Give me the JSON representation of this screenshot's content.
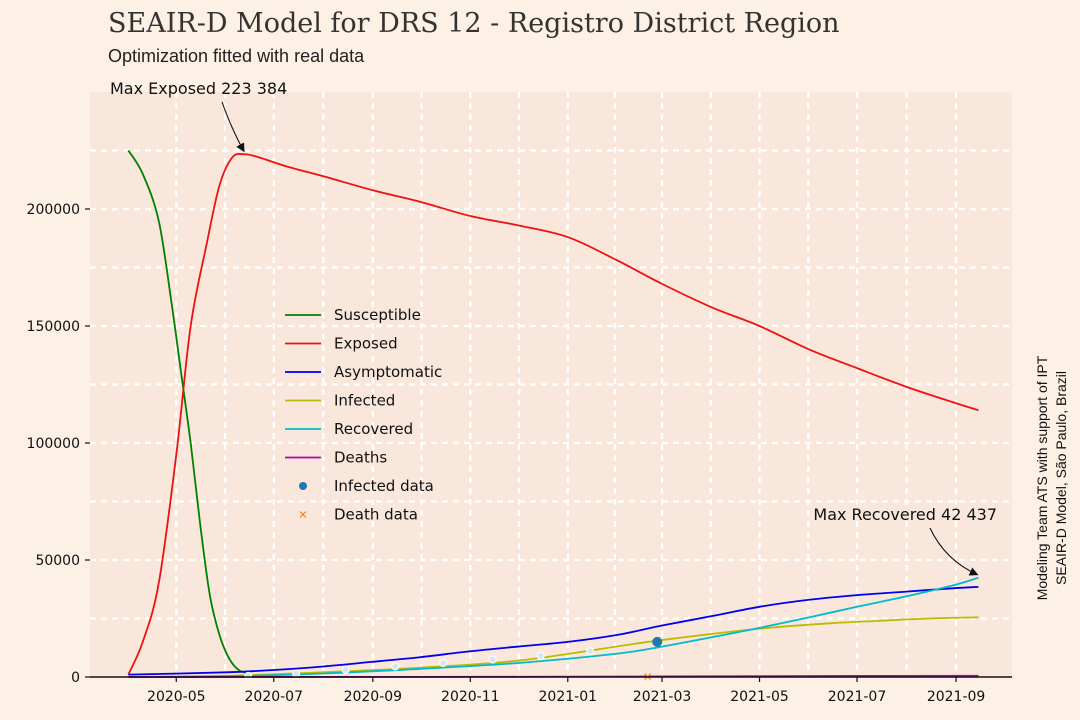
{
  "title": "SEAIR-D Model for DRS 12 - Registro District Region",
  "subtitle": "Optimization fitted with real data",
  "credits": {
    "line1": "Modeling Team ATS with support of IPT",
    "line2": "SEAIR-D Model, São Paulo, Brazil"
  },
  "annotations": {
    "max_exposed": "Max Exposed 223 384",
    "max_recovered": "Max Recovered 42 437"
  },
  "colors": {
    "background": "#fdf0e5",
    "plot_background": "#fae7dc",
    "grid": "#ffffff",
    "susceptible": "#008000",
    "exposed": "#ee1111",
    "asymptomatic": "#0000ee",
    "infected": "#bbbb00",
    "recovered": "#00bbcc",
    "deaths": "#bb00bb",
    "infected_data": "#1f77b4",
    "death_data": "#ff7f0e"
  },
  "chart_data": {
    "type": "line",
    "x_tick_labels": [
      "2020-05",
      "2020-07",
      "2020-09",
      "2020-11",
      "2021-01",
      "2021-03",
      "2021-05",
      "2021-07",
      "2021-09"
    ],
    "x_tick_dates": [
      "2020-05-01",
      "2020-07-01",
      "2020-09-01",
      "2020-11-01",
      "2021-01-01",
      "2021-03-01",
      "2021-05-01",
      "2021-07-01",
      "2021-09-01"
    ],
    "y_tick_labels": [
      "0",
      "50000",
      "100000",
      "150000",
      "200000"
    ],
    "y_tick_values": [
      0,
      50000,
      100000,
      150000,
      200000
    ],
    "xlim": [
      "2020-03-08",
      "2021-10-06"
    ],
    "ylim": [
      0,
      250000
    ],
    "grid": true,
    "legend_position": "center-left",
    "series": [
      {
        "name": "Susceptible",
        "key": "susceptible",
        "style": "line",
        "x": [
          "2020-04-01",
          "2020-04-10",
          "2020-04-20",
          "2020-04-28",
          "2020-05-04",
          "2020-05-10",
          "2020-05-16",
          "2020-05-22",
          "2020-05-28",
          "2020-06-03",
          "2020-06-09",
          "2020-06-15"
        ],
        "y": [
          225000,
          215000,
          195000,
          160000,
          130000,
          100000,
          65000,
          35000,
          18000,
          8000,
          3000,
          1500
        ]
      },
      {
        "name": "Exposed",
        "key": "exposed",
        "style": "line",
        "x": [
          "2020-04-01",
          "2020-04-10",
          "2020-04-20",
          "2020-05-01",
          "2020-05-10",
          "2020-05-20",
          "2020-05-28",
          "2020-06-05",
          "2020-06-13",
          "2020-06-22",
          "2020-07-10",
          "2020-08-01",
          "2020-09-01",
          "2020-10-01",
          "2020-11-01",
          "2020-12-01",
          "2021-01-01",
          "2021-02-01",
          "2021-03-01",
          "2021-04-01",
          "2021-05-01",
          "2021-06-01",
          "2021-07-01",
          "2021-08-01",
          "2021-09-01",
          "2021-09-15"
        ],
        "y": [
          1000,
          15000,
          40000,
          95000,
          150000,
          185000,
          210000,
          222000,
          223384,
          222000,
          218000,
          214000,
          208000,
          203000,
          197000,
          193000,
          188000,
          178000,
          168000,
          158000,
          150000,
          140000,
          132000,
          124000,
          117000,
          114000
        ]
      },
      {
        "name": "Asymptomatic",
        "key": "asymptomatic",
        "style": "line",
        "x": [
          "2020-04-01",
          "2020-06-01",
          "2020-07-01",
          "2020-08-01",
          "2020-09-01",
          "2020-10-01",
          "2020-11-01",
          "2020-12-01",
          "2021-01-01",
          "2021-02-01",
          "2021-03-01",
          "2021-04-01",
          "2021-05-01",
          "2021-06-01",
          "2021-07-01",
          "2021-08-01",
          "2021-09-01",
          "2021-09-15"
        ],
        "y": [
          1000,
          2000,
          3000,
          4500,
          6500,
          8500,
          11000,
          13000,
          15000,
          18000,
          22000,
          26000,
          30000,
          33000,
          35000,
          36500,
          38000,
          38500
        ]
      },
      {
        "name": "Infected",
        "key": "infected",
        "style": "line",
        "x": [
          "2020-04-01",
          "2020-06-01",
          "2020-08-01",
          "2020-10-01",
          "2020-12-01",
          "2021-02-15",
          "2021-03-15",
          "2021-04-15",
          "2021-05-15",
          "2021-06-15",
          "2021-07-15",
          "2021-08-15",
          "2021-09-15"
        ],
        "y": [
          0,
          500,
          2000,
          4000,
          7000,
          14500,
          17000,
          19500,
          21500,
          23000,
          24000,
          25000,
          25500
        ]
      },
      {
        "name": "Recovered",
        "key": "recovered",
        "style": "line",
        "x": [
          "2020-04-01",
          "2020-06-01",
          "2020-08-01",
          "2020-10-01",
          "2020-12-01",
          "2021-02-01",
          "2021-03-01",
          "2021-04-01",
          "2021-05-01",
          "2021-06-01",
          "2021-07-01",
          "2021-08-01",
          "2021-09-01",
          "2021-09-15"
        ],
        "y": [
          0,
          300,
          1500,
          3500,
          6000,
          10000,
          13000,
          17000,
          21000,
          25500,
          30000,
          34500,
          39500,
          42437
        ]
      },
      {
        "name": "Deaths",
        "key": "deaths",
        "style": "line",
        "x": [
          "2020-04-01",
          "2020-10-01",
          "2021-01-01",
          "2021-04-01",
          "2021-07-01",
          "2021-09-15"
        ],
        "y": [
          0,
          50,
          150,
          300,
          450,
          550
        ]
      },
      {
        "name": "Infected data",
        "key": "infected_data",
        "style": "dots",
        "x": [
          "2020-06-15",
          "2020-07-15",
          "2020-08-15",
          "2020-09-15",
          "2020-10-15",
          "2020-11-15",
          "2020-12-15",
          "2021-01-15",
          "2021-02-26"
        ],
        "y": [
          500,
          1500,
          3000,
          4500,
          6000,
          7500,
          9000,
          11000,
          15000
        ]
      },
      {
        "name": "Death data",
        "key": "death_data",
        "style": "cross",
        "x": [
          "2021-02-20"
        ],
        "y": [
          200
        ]
      }
    ],
    "annotations": [
      {
        "label_key": "max_exposed",
        "x": "2020-06-13",
        "y": 223384
      },
      {
        "label_key": "max_recovered",
        "x": "2021-09-15",
        "y": 42437
      }
    ]
  }
}
